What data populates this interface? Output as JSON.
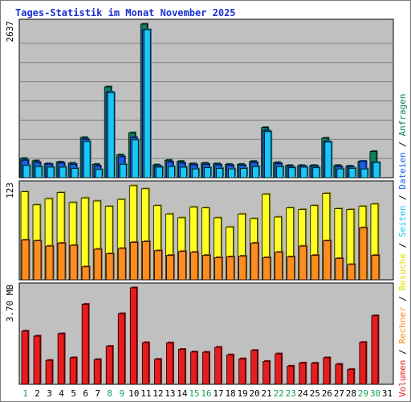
{
  "chart_data": {
    "type": "bar",
    "title": "Tages-Statistik im Monat November 2025",
    "x": {
      "days": [
        "1",
        "2",
        "3",
        "4",
        "5",
        "6",
        "7",
        "8",
        "9",
        "10",
        "11",
        "12",
        "13",
        "14",
        "15",
        "16",
        "17",
        "18",
        "19",
        "20",
        "21",
        "22",
        "23",
        "24",
        "25",
        "26",
        "27",
        "28",
        "29",
        "30",
        "31"
      ],
      "weekend_days": [
        "1",
        "8",
        "9",
        "15",
        "16",
        "22",
        "23",
        "29",
        "30"
      ]
    },
    "panels": [
      {
        "id": "anfragen",
        "max_label": "2637",
        "ylim": [
          0,
          2637
        ],
        "series": [
          {
            "name": "Anfragen",
            "color": "#0e7f5e",
            "values": [
              330,
              290,
              240,
              270,
              250,
              690,
              230,
              1560,
              390,
              770,
              2637,
              220,
              300,
              280,
              240,
              250,
              240,
              230,
              230,
              280,
              860,
              260,
              210,
              210,
              210,
              680,
              210,
              200,
              280,
              450,
              null
            ]
          },
          {
            "name": "Dateien",
            "color": "#1e5cf0",
            "values": [
              300,
              260,
              230,
              250,
              230,
              660,
              200,
              1470,
              360,
              690,
              2540,
              200,
              270,
              250,
              220,
              230,
              220,
              210,
              210,
              260,
              810,
              240,
              190,
              200,
              200,
              620,
              190,
              180,
              280,
              260,
              null
            ]
          },
          {
            "name": "Seiten",
            "color": "#19c6f5",
            "values": [
              210,
              190,
              180,
              180,
              160,
              620,
              140,
              1460,
              230,
              650,
              2540,
              180,
              190,
              180,
              150,
              170,
              160,
              150,
              160,
              190,
              790,
              190,
              170,
              180,
              170,
              610,
              150,
              160,
              150,
              260,
              null
            ]
          }
        ]
      },
      {
        "id": "besuche",
        "max_label": "123",
        "ylim": [
          0,
          123
        ],
        "series": [
          {
            "name": "Besuche",
            "color": "#ffff22",
            "values": [
              115,
              98,
              106,
              114,
              101,
              107,
              103,
              96,
              105,
              123,
              119,
              97,
              86,
              81,
              95,
              94,
              81,
              69,
              86,
              80,
              112,
              82,
              94,
              92,
              97,
              113,
              93,
              92,
              96,
              99,
              null
            ]
          },
          {
            "name": "Rechner",
            "color": "#ff8c1e",
            "values": [
              52,
              51,
              44,
              48,
              45,
              17,
              40,
              34,
              41,
              49,
              50,
              38,
              32,
              37,
              36,
              32,
              29,
              30,
              31,
              48,
              29,
              36,
              30,
              44,
              32,
              51,
              28,
              20,
              68,
              32,
              null
            ]
          }
        ]
      },
      {
        "id": "volumen",
        "max_label": "3.70 MB",
        "ylim": [
          0,
          3.7
        ],
        "series": [
          {
            "name": "Volumen",
            "color": "#e81c1c",
            "values": [
              2.04,
              1.85,
              0.92,
              1.94,
              1.02,
              3.07,
              0.95,
              1.46,
              2.71,
              3.7,
              1.6,
              0.96,
              1.59,
              1.34,
              1.24,
              1.23,
              1.42,
              1.13,
              0.98,
              1.3,
              0.88,
              1.17,
              0.7,
              0.82,
              0.81,
              1.02,
              0.77,
              0.57,
              1.61,
              2.63,
              null
            ]
          }
        ]
      }
    ],
    "legend": {
      "placement": "right-vertical",
      "bottom": [
        {
          "text": "Volumen",
          "color": "#e81c1c"
        },
        {
          "text": "Rechner",
          "color": "#ff8c1e"
        },
        {
          "text": "Besuche",
          "color": "#e0e000"
        },
        {
          "text": "Seiten",
          "color": "#19c6f5"
        },
        {
          "text": "Dateien",
          "color": "#1e5cf0"
        },
        {
          "text": "Anfragen",
          "color": "#0e7f5e"
        }
      ],
      "separator": " / "
    },
    "colors": {
      "title": "#1a2fcf",
      "plot_bg": "#c0c0c0",
      "panel_border": "#000000",
      "frame": "#7a7a7a",
      "gridline": "#7f7f7f",
      "day_label": "#000000",
      "weekend_label": "#14a050"
    },
    "grid": true
  }
}
